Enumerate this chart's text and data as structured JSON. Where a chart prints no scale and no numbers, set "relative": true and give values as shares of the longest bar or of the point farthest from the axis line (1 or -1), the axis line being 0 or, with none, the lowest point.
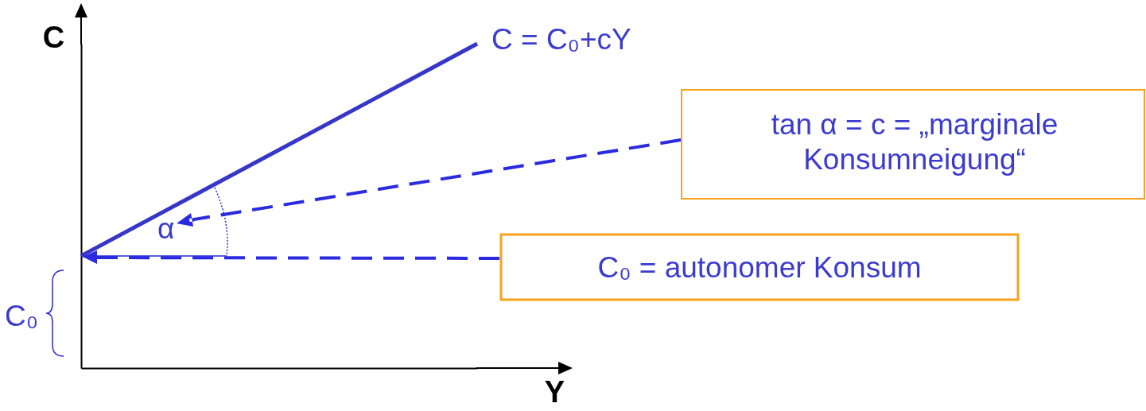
{
  "chart_data": {
    "type": "line",
    "relative": true,
    "xlabel": "Y",
    "ylabel": "C",
    "line_style": "solid",
    "categories": [
      null,
      null
    ],
    "series": [
      {
        "color": "#3636c8",
        "values": [
          0.346,
          1
        ]
      }
    ],
    "annotations": [
      "C = C₀+cY",
      "tan α = c = „marginale Konsumneigung“",
      "α",
      "C₀ = autonomer Konsum",
      "C₀"
    ]
  }
}
